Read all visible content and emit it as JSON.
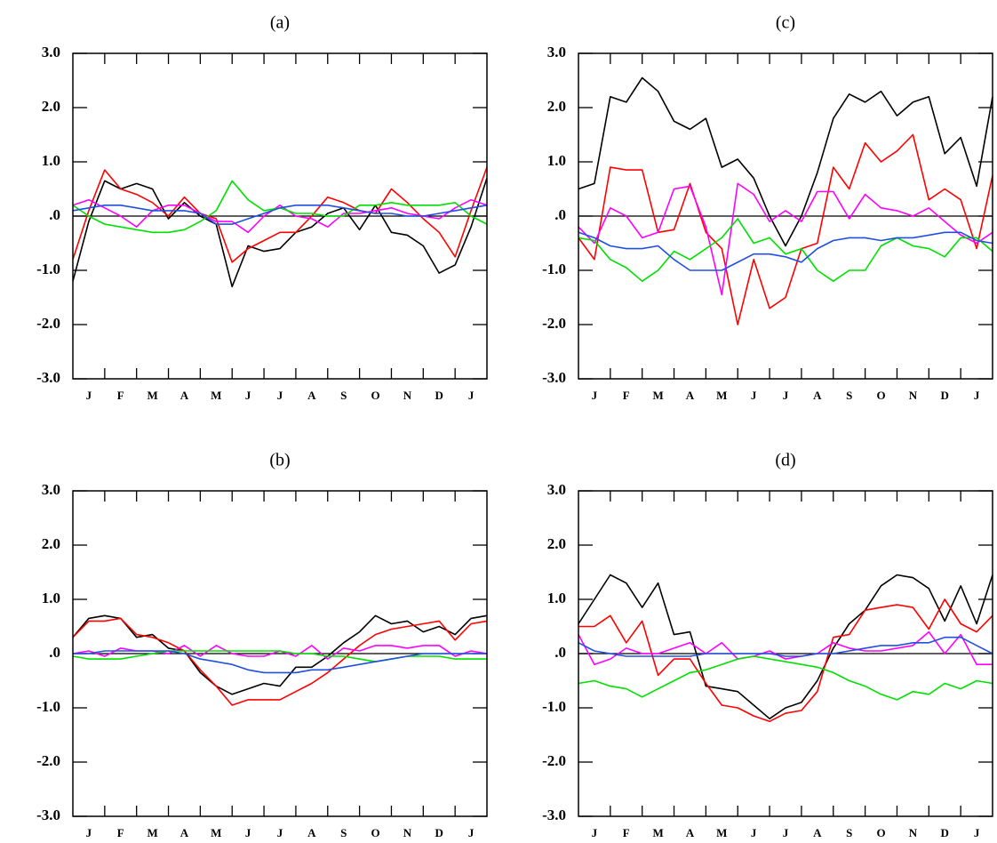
{
  "chart_data": [
    {
      "type": "line",
      "title": "(a)",
      "categories": [
        "J",
        "F",
        "M",
        "A",
        "M",
        "J",
        "J",
        "A",
        "S",
        "O",
        "N",
        "D",
        "J"
      ],
      "x": [
        0,
        0.5,
        1,
        1.5,
        2,
        2.5,
        3,
        3.5,
        4,
        4.5,
        5,
        5.5,
        6,
        6.5,
        7,
        7.5,
        8,
        8.5,
        9,
        9.5,
        10,
        10.5,
        11,
        11.5,
        12,
        12.5,
        13
      ],
      "xlim": [
        0,
        13
      ],
      "ylim": [
        -3,
        3
      ],
      "yticks": [
        {
          "value": 3,
          "label": "3.0"
        },
        {
          "value": 2,
          "label": "2.0"
        },
        {
          "value": 1,
          "label": "1.0"
        },
        {
          "value": 0,
          "label": ".0"
        },
        {
          "value": -1,
          "label": "-1.0"
        },
        {
          "value": -2,
          "label": "-2.0"
        },
        {
          "value": -3,
          "label": "-3.0"
        }
      ],
      "series": [
        {
          "color": "#000000",
          "values": [
            -1.2,
            -0.1,
            0.65,
            0.5,
            0.6,
            0.5,
            -0.05,
            0.25,
            0.0,
            -0.15,
            -1.3,
            -0.55,
            -0.65,
            -0.6,
            -0.3,
            -0.2,
            0.05,
            0.15,
            -0.25,
            0.2,
            -0.3,
            -0.35,
            -0.55,
            -1.05,
            -0.9,
            -0.2,
            0.7
          ]
        },
        {
          "color": "#ff0000",
          "values": [
            -0.8,
            0.1,
            0.85,
            0.5,
            0.4,
            0.25,
            0.0,
            0.35,
            0.05,
            -0.05,
            -0.85,
            -0.6,
            -0.45,
            -0.3,
            -0.3,
            0.0,
            0.35,
            0.25,
            0.1,
            0.05,
            0.5,
            0.25,
            -0.05,
            -0.3,
            -0.75,
            0.1,
            0.9
          ]
        },
        {
          "color": "#ff00ff",
          "values": [
            0.2,
            0.3,
            0.15,
            0.0,
            -0.2,
            0.1,
            0.2,
            0.2,
            0.05,
            -0.1,
            -0.1,
            -0.3,
            0.0,
            0.2,
            0.0,
            -0.05,
            -0.2,
            0.05,
            0.05,
            0.1,
            0.15,
            0.05,
            0.0,
            -0.05,
            0.15,
            0.3,
            0.2
          ]
        },
        {
          "color": "#00e000",
          "values": [
            0.2,
            0.0,
            -0.15,
            -0.2,
            -0.25,
            -0.3,
            -0.3,
            -0.25,
            -0.1,
            0.1,
            0.65,
            0.3,
            0.1,
            0.15,
            0.05,
            0.05,
            0.0,
            0.0,
            0.2,
            0.2,
            0.25,
            0.2,
            0.2,
            0.2,
            0.25,
            0.0,
            -0.15
          ]
        },
        {
          "color": "#2050e0",
          "values": [
            0.1,
            0.15,
            0.2,
            0.2,
            0.15,
            0.1,
            0.1,
            0.1,
            0.05,
            -0.15,
            -0.15,
            -0.05,
            0.05,
            0.15,
            0.2,
            0.2,
            0.2,
            0.15,
            0.1,
            0.05,
            0.05,
            0.0,
            0.0,
            0.05,
            0.1,
            0.15,
            0.2
          ]
        }
      ]
    },
    {
      "type": "line",
      "title": "(c)",
      "categories": [
        "J",
        "F",
        "M",
        "A",
        "M",
        "J",
        "J",
        "A",
        "S",
        "O",
        "N",
        "D",
        "J"
      ],
      "x": [
        0,
        0.5,
        1,
        1.5,
        2,
        2.5,
        3,
        3.5,
        4,
        4.5,
        5,
        5.5,
        6,
        6.5,
        7,
        7.5,
        8,
        8.5,
        9,
        9.5,
        10,
        10.5,
        11,
        11.5,
        12,
        12.5,
        13
      ],
      "xlim": [
        0,
        13
      ],
      "ylim": [
        -3,
        3
      ],
      "yticks": [
        {
          "value": 3,
          "label": "3.0"
        },
        {
          "value": 2,
          "label": "2.0"
        },
        {
          "value": 1,
          "label": "1.0"
        },
        {
          "value": 0,
          "label": ".0"
        },
        {
          "value": -1,
          "label": "-1.0"
        },
        {
          "value": -2,
          "label": "-2.0"
        },
        {
          "value": -3,
          "label": "-3.0"
        }
      ],
      "series": [
        {
          "color": "#000000",
          "values": [
            0.5,
            0.6,
            2.2,
            2.1,
            2.55,
            2.3,
            1.75,
            1.6,
            1.8,
            0.9,
            1.05,
            0.7,
            0.0,
            -0.55,
            0.0,
            0.8,
            1.8,
            2.25,
            2.1,
            2.3,
            1.85,
            2.1,
            2.2,
            1.15,
            1.45,
            0.55,
            2.2
          ]
        },
        {
          "color": "#ff0000",
          "values": [
            -0.4,
            -0.8,
            0.9,
            0.85,
            0.85,
            -0.3,
            -0.25,
            0.6,
            -0.3,
            -0.6,
            -2.0,
            -0.8,
            -1.7,
            -1.5,
            -0.6,
            -0.5,
            0.9,
            0.5,
            1.35,
            1.0,
            1.2,
            1.5,
            0.3,
            0.5,
            0.3,
            -0.6,
            0.75
          ]
        },
        {
          "color": "#ff00ff",
          "values": [
            -0.2,
            -0.5,
            0.15,
            0.0,
            -0.4,
            -0.3,
            0.5,
            0.55,
            -0.2,
            -1.45,
            0.6,
            0.4,
            -0.1,
            0.1,
            -0.1,
            0.45,
            0.45,
            -0.05,
            0.4,
            0.15,
            0.1,
            0.0,
            0.15,
            -0.1,
            -0.35,
            -0.5,
            -0.3
          ]
        },
        {
          "color": "#00e000",
          "values": [
            -0.4,
            -0.45,
            -0.8,
            -0.95,
            -1.2,
            -1.0,
            -0.65,
            -0.8,
            -0.6,
            -0.4,
            -0.05,
            -0.5,
            -0.4,
            -0.7,
            -0.6,
            -1.0,
            -1.2,
            -1.0,
            -1.0,
            -0.55,
            -0.4,
            -0.55,
            -0.6,
            -0.75,
            -0.4,
            -0.4,
            -0.65
          ]
        },
        {
          "color": "#2050e0",
          "values": [
            -0.3,
            -0.4,
            -0.55,
            -0.6,
            -0.6,
            -0.55,
            -0.8,
            -1.0,
            -1.0,
            -1.0,
            -0.85,
            -0.7,
            -0.7,
            -0.75,
            -0.85,
            -0.6,
            -0.45,
            -0.4,
            -0.4,
            -0.45,
            -0.4,
            -0.4,
            -0.35,
            -0.3,
            -0.3,
            -0.45,
            -0.5
          ]
        }
      ]
    },
    {
      "type": "line",
      "title": "(b)",
      "categories": [
        "J",
        "F",
        "M",
        "A",
        "M",
        "J",
        "J",
        "A",
        "S",
        "O",
        "N",
        "D",
        "J"
      ],
      "x": [
        0,
        0.5,
        1,
        1.5,
        2,
        2.5,
        3,
        3.5,
        4,
        4.5,
        5,
        5.5,
        6,
        6.5,
        7,
        7.5,
        8,
        8.5,
        9,
        9.5,
        10,
        10.5,
        11,
        11.5,
        12,
        12.5,
        13
      ],
      "xlim": [
        0,
        13
      ],
      "ylim": [
        -3,
        3
      ],
      "yticks": [
        {
          "value": 3,
          "label": "3.0"
        },
        {
          "value": 2,
          "label": "2.0"
        },
        {
          "value": 1,
          "label": "1.0"
        },
        {
          "value": 0,
          "label": ".0"
        },
        {
          "value": -1,
          "label": "-1.0"
        },
        {
          "value": -2,
          "label": "-2.0"
        },
        {
          "value": -3,
          "label": "-3.0"
        }
      ],
      "series": [
        {
          "color": "#000000",
          "values": [
            0.3,
            0.65,
            0.7,
            0.65,
            0.3,
            0.35,
            0.1,
            0.05,
            -0.35,
            -0.6,
            -0.75,
            -0.65,
            -0.55,
            -0.6,
            -0.25,
            -0.25,
            -0.05,
            0.2,
            0.4,
            0.7,
            0.55,
            0.6,
            0.4,
            0.5,
            0.35,
            0.65,
            0.7
          ]
        },
        {
          "color": "#ff0000",
          "values": [
            0.3,
            0.6,
            0.6,
            0.65,
            0.35,
            0.3,
            0.2,
            0.05,
            -0.3,
            -0.6,
            -0.95,
            -0.85,
            -0.85,
            -0.85,
            -0.7,
            -0.55,
            -0.35,
            -0.1,
            0.15,
            0.35,
            0.45,
            0.5,
            0.55,
            0.6,
            0.25,
            0.55,
            0.6
          ]
        },
        {
          "color": "#ff00ff",
          "values": [
            0.0,
            0.05,
            -0.05,
            0.1,
            0.05,
            0.05,
            0.0,
            0.15,
            -0.05,
            0.15,
            0.0,
            -0.05,
            -0.05,
            0.05,
            -0.05,
            0.15,
            -0.1,
            0.1,
            0.05,
            0.15,
            0.15,
            0.1,
            0.15,
            0.15,
            -0.05,
            0.05,
            0.0
          ]
        },
        {
          "color": "#00e000",
          "values": [
            -0.05,
            -0.1,
            -0.1,
            -0.1,
            -0.05,
            0.0,
            0.05,
            0.05,
            0.05,
            0.05,
            0.05,
            0.05,
            0.05,
            0.05,
            0.0,
            0.0,
            -0.05,
            -0.05,
            -0.1,
            -0.15,
            -0.1,
            -0.05,
            -0.05,
            -0.05,
            -0.1,
            -0.1,
            -0.1
          ]
        },
        {
          "color": "#2050e0",
          "values": [
            0.0,
            0.0,
            0.05,
            0.05,
            0.05,
            0.05,
            0.05,
            0.0,
            -0.1,
            -0.15,
            -0.2,
            -0.3,
            -0.35,
            -0.35,
            -0.35,
            -0.3,
            -0.3,
            -0.25,
            -0.2,
            -0.15,
            -0.1,
            -0.05,
            0.0,
            0.0,
            0.0,
            0.0,
            0.0
          ]
        }
      ]
    },
    {
      "type": "line",
      "title": "(d)",
      "categories": [
        "J",
        "F",
        "M",
        "A",
        "M",
        "J",
        "J",
        "A",
        "S",
        "O",
        "N",
        "D",
        "J"
      ],
      "x": [
        0,
        0.5,
        1,
        1.5,
        2,
        2.5,
        3,
        3.5,
        4,
        4.5,
        5,
        5.5,
        6,
        6.5,
        7,
        7.5,
        8,
        8.5,
        9,
        9.5,
        10,
        10.5,
        11,
        11.5,
        12,
        12.5,
        13
      ],
      "xlim": [
        0,
        13
      ],
      "ylim": [
        -3,
        3
      ],
      "yticks": [
        {
          "value": 3,
          "label": "3.0"
        },
        {
          "value": 2,
          "label": "2.0"
        },
        {
          "value": 1,
          "label": "1.0"
        },
        {
          "value": 0,
          "label": ".0"
        },
        {
          "value": -1,
          "label": "-1.0"
        },
        {
          "value": -2,
          "label": "-2.0"
        },
        {
          "value": -3,
          "label": "-3.0"
        }
      ],
      "series": [
        {
          "color": "#000000",
          "values": [
            0.55,
            1.0,
            1.45,
            1.3,
            0.85,
            1.3,
            0.35,
            0.4,
            -0.6,
            -0.65,
            -0.7,
            -0.95,
            -1.2,
            -1.0,
            -0.9,
            -0.5,
            0.1,
            0.55,
            0.8,
            1.25,
            1.45,
            1.4,
            1.2,
            0.6,
            1.25,
            0.55,
            1.45
          ]
        },
        {
          "color": "#ff0000",
          "values": [
            0.5,
            0.5,
            0.7,
            0.2,
            0.6,
            -0.4,
            -0.1,
            -0.1,
            -0.55,
            -0.95,
            -1.0,
            -1.15,
            -1.25,
            -1.1,
            -1.05,
            -0.7,
            0.3,
            0.35,
            0.8,
            0.85,
            0.9,
            0.85,
            0.45,
            1.0,
            0.55,
            0.4,
            0.7
          ]
        },
        {
          "color": "#ff00ff",
          "values": [
            0.35,
            -0.2,
            -0.1,
            0.1,
            0.0,
            0.0,
            0.1,
            0.2,
            0.0,
            0.2,
            -0.1,
            -0.05,
            0.05,
            -0.1,
            -0.05,
            0.0,
            0.2,
            0.1,
            0.05,
            0.05,
            0.1,
            0.15,
            0.4,
            0.0,
            0.35,
            -0.2,
            -0.2
          ]
        },
        {
          "color": "#00e000",
          "values": [
            -0.55,
            -0.5,
            -0.6,
            -0.65,
            -0.8,
            -0.65,
            -0.5,
            -0.35,
            -0.3,
            -0.2,
            -0.1,
            -0.05,
            -0.1,
            -0.15,
            -0.2,
            -0.25,
            -0.35,
            -0.5,
            -0.6,
            -0.75,
            -0.85,
            -0.7,
            -0.75,
            -0.55,
            -0.65,
            -0.5,
            -0.55
          ]
        },
        {
          "color": "#2050e0",
          "values": [
            0.2,
            0.05,
            0.0,
            -0.05,
            -0.05,
            -0.05,
            -0.05,
            -0.05,
            0.0,
            0.0,
            0.0,
            0.0,
            0.0,
            -0.05,
            -0.05,
            0.0,
            0.0,
            0.05,
            0.1,
            0.15,
            0.15,
            0.2,
            0.2,
            0.3,
            0.3,
            0.15,
            0.0
          ]
        }
      ]
    }
  ]
}
